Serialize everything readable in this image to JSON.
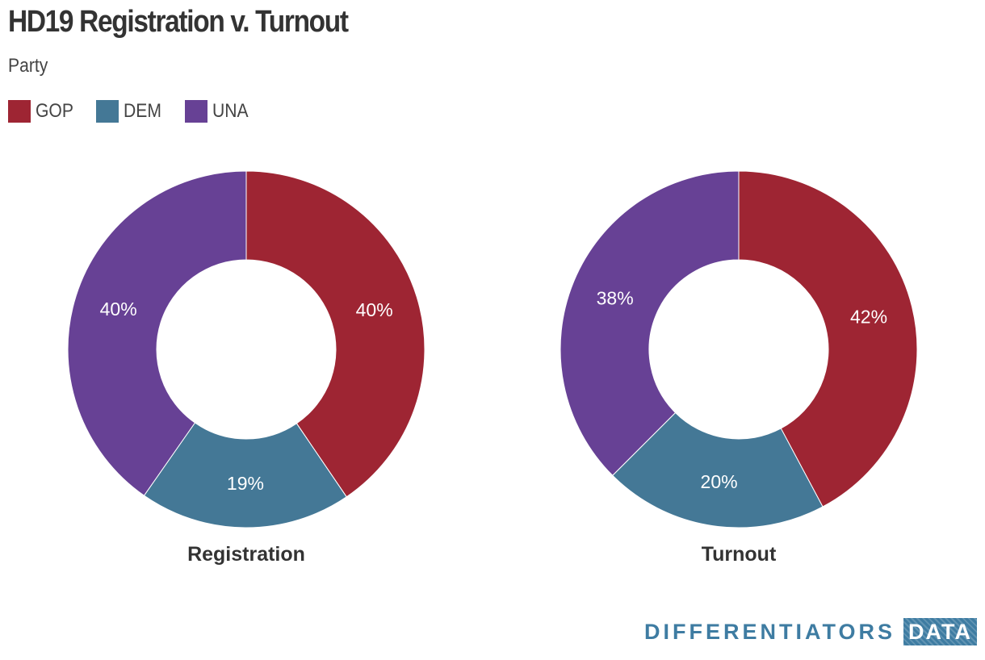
{
  "title": "HD19 Registration v. Turnout",
  "subtitle": "Party",
  "legend": [
    {
      "label": "GOP",
      "color": "#9e2533"
    },
    {
      "label": "DEM",
      "color": "#447896"
    },
    {
      "label": "UNA",
      "color": "#674195"
    }
  ],
  "brand": {
    "name": "DIFFERENTIATORS",
    "tag": "DATA"
  },
  "chart_data": [
    {
      "type": "pie",
      "title": "Registration",
      "categories": [
        "GOP",
        "DEM",
        "UNA"
      ],
      "values": [
        40.5,
        19.2,
        40.3
      ],
      "labels": [
        "40%",
        "19%",
        "40%"
      ],
      "colors": [
        "#9e2533",
        "#447896",
        "#674195"
      ]
    },
    {
      "type": "pie",
      "title": "Turnout",
      "categories": [
        "GOP",
        "DEM",
        "UNA"
      ],
      "values": [
        42.2,
        20.3,
        37.5
      ],
      "labels": [
        "42%",
        "20%",
        "38%"
      ],
      "colors": [
        "#9e2533",
        "#447896",
        "#674195"
      ]
    }
  ]
}
